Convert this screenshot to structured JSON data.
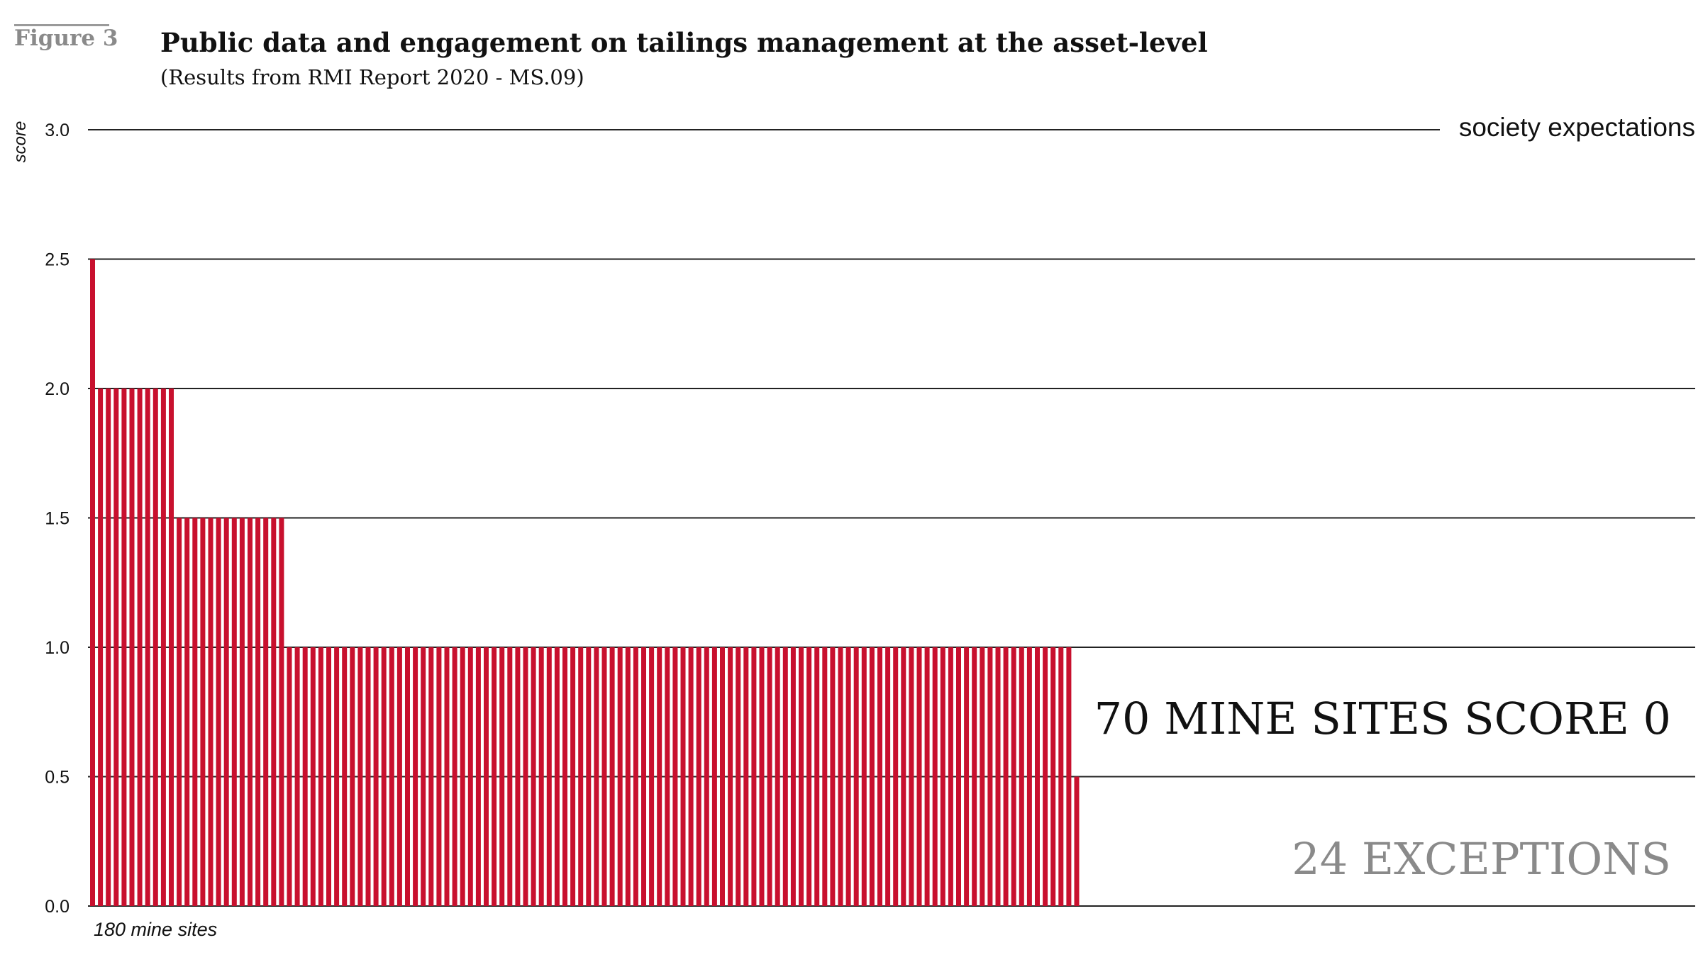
{
  "header": {
    "figure_label": "Figure 3",
    "title": "Public data and engagement on tailings management at the asset-level",
    "subtitle": "(Results from RMI Report 2020 - MS.09)"
  },
  "colors": {
    "bar": "#c8102e",
    "grid": "#222222",
    "annotation_dark": "#111111",
    "annotation_grey": "#8a8a8a"
  },
  "chart_data": {
    "type": "bar",
    "ylabel": "score",
    "xlabel": "180 mine sites",
    "ylim": [
      0,
      3
    ],
    "yticks": [
      "0.0",
      "0.5",
      "1.0",
      "1.5",
      "2.0",
      "2.5",
      "3.0"
    ],
    "grid": true,
    "series": [
      {
        "values": [
          2.5,
          2.0,
          2.0,
          2.0,
          2.0,
          2.0,
          2.0,
          2.0,
          2.0,
          2.0,
          2.0,
          1.5,
          1.5,
          1.5,
          1.5,
          1.5,
          1.5,
          1.5,
          1.5,
          1.5,
          1.5,
          1.5,
          1.5,
          1.5,
          1.5,
          1.0,
          1.0,
          1.0,
          1.0,
          1.0,
          1.0,
          1.0,
          1.0,
          1.0,
          1.0,
          1.0,
          1.0,
          1.0,
          1.0,
          1.0,
          1.0,
          1.0,
          1.0,
          1.0,
          1.0,
          1.0,
          1.0,
          1.0,
          1.0,
          1.0,
          1.0,
          1.0,
          1.0,
          1.0,
          1.0,
          1.0,
          1.0,
          1.0,
          1.0,
          1.0,
          1.0,
          1.0,
          1.0,
          1.0,
          1.0,
          1.0,
          1.0,
          1.0,
          1.0,
          1.0,
          1.0,
          1.0,
          1.0,
          1.0,
          1.0,
          1.0,
          1.0,
          1.0,
          1.0,
          1.0,
          1.0,
          1.0,
          1.0,
          1.0,
          1.0,
          1.0,
          1.0,
          1.0,
          1.0,
          1.0,
          1.0,
          1.0,
          1.0,
          1.0,
          1.0,
          1.0,
          1.0,
          1.0,
          1.0,
          1.0,
          1.0,
          1.0,
          1.0,
          1.0,
          1.0,
          1.0,
          1.0,
          1.0,
          1.0,
          1.0,
          1.0,
          1.0,
          1.0,
          1.0,
          1.0,
          1.0,
          1.0,
          1.0,
          1.0,
          1.0,
          1.0,
          1.0,
          1.0,
          1.0,
          1.0,
          0.5
        ]
      }
    ],
    "reference_line": {
      "value": 3.0,
      "label": "society expectations"
    },
    "annotations": [
      {
        "text": "70 MINE SITES SCORE 0"
      },
      {
        "text": "24 EXCEPTIONS"
      }
    ]
  }
}
